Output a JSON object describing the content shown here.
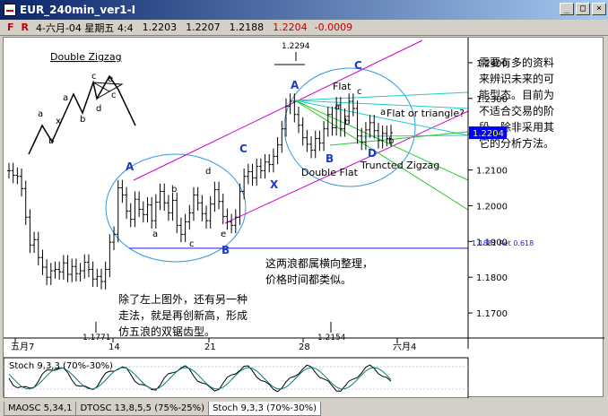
{
  "window": {
    "title": "EUR_240min_ver1-I",
    "min": "_",
    "max": "□",
    "close": "×"
  },
  "info": {
    "flag_f": "F",
    "flag_r": "R",
    "date": "4-六月-04 星期五 4:4",
    "open": "1.2203",
    "high": "1.2207",
    "low": "1.2188",
    "close": "1.2204",
    "change": "-0.0009"
  },
  "tabs": [
    "MAOSC 5,34,1",
    "DTOSC 13,8,5,5 (75%-25%)",
    "Stoch 9,3,3 (70%-30%)"
  ],
  "colors": {
    "bars": "#000000",
    "channel": "#cc00cc",
    "ellipse": "#3399dd",
    "fan_cyan": "#22cccc",
    "fan_green": "#22cc22",
    "hline": "#2222cc",
    "wave_label": "#1a3cc8",
    "last_price_bg": "#0000ff"
  },
  "chart_data": {
    "type": "line",
    "ylim": [
      1.163,
      1.247
    ],
    "y_ticks": [
      "1.2400",
      "1.2300",
      "1.2200",
      "1.2100",
      "1.2000",
      "1.1900",
      "1.1800",
      "1.1700"
    ],
    "x_ticks": [
      "五月7",
      "14",
      "21",
      "28",
      "六月4"
    ],
    "last_price": "1.2204",
    "support_line": {
      "value": 1.1881,
      "label": "1.1881 Ret 0.618"
    },
    "extremes": [
      {
        "label": "1.2294",
        "value": 1.2294
      },
      {
        "label": "1.1771",
        "value": 1.1771
      },
      {
        "label": "1.2154",
        "value": 1.2154
      }
    ],
    "series": [
      {
        "values": [
          1.2098,
          1.2085,
          1.2082,
          1.2048,
          1.1968,
          1.189,
          1.1905,
          1.1855,
          1.1828,
          1.18,
          1.1818,
          1.1822,
          1.1815,
          1.184,
          1.1808,
          1.183,
          1.181,
          1.1818,
          1.1842,
          1.1822,
          1.1795,
          1.1802,
          1.1788,
          1.1822,
          1.1898,
          1.192,
          1.205,
          1.203,
          1.1985,
          1.1962,
          1.2018,
          1.199,
          1.1975,
          1.2002,
          1.1958,
          1.201,
          1.204,
          1.2008,
          1.198,
          1.2015,
          1.1945,
          1.192,
          1.1955,
          1.198,
          1.203,
          1.2008,
          1.1978,
          1.1958,
          1.2005,
          1.2045,
          1.2012,
          1.197,
          1.1955,
          1.1945,
          1.1968,
          1.204,
          1.2082,
          1.2095,
          1.2078,
          1.211,
          1.2098,
          1.2122,
          1.2115,
          1.2138,
          1.217,
          1.2215,
          1.2278,
          1.2292,
          1.2255,
          1.2225,
          1.219,
          1.2172,
          1.2155,
          1.2188,
          1.2175,
          1.2215,
          1.2255,
          1.2218,
          1.2282,
          1.2215,
          1.225,
          1.2292,
          1.2272,
          1.2195,
          1.2178,
          1.2212,
          1.2232,
          1.221,
          1.2182,
          1.2202,
          1.2188,
          1.2204
        ]
      }
    ]
  },
  "annotations": {
    "double_zigzag": "Double Zigzag",
    "mini_labels": [
      "a",
      "b",
      "x",
      "a",
      "b",
      "c",
      "d",
      "e",
      "c"
    ],
    "wave_A1": "A",
    "wave_B1": "B",
    "wave_C": "C",
    "wave_X": "X",
    "wave_A2": "A",
    "wave_B2": "B",
    "wave_C2": "C",
    "wave_D": "D",
    "small_a1": "a",
    "small_b1": "b",
    "small_c1": "c",
    "small_d1": "d",
    "small_e1": "e",
    "small_a2": "a",
    "small_b2": "b",
    "small_c2": "c",
    "small_a3": "a",
    "small_b3": "b",
    "flat": "Flat",
    "flat_or_triangle": "Flat or triangle?",
    "double_flat": "Double Flat",
    "truncted_zigzag": "Truncted Zigzag",
    "note_right": [
      "需要有多的资料",
      "来辨识未来的可",
      "能型态。目前为",
      "不适合交易的阶",
      "段，除非采用其",
      "它的分析方法。"
    ],
    "note_mid": [
      "这两浪都属横向整理，",
      "价格时间都类似。"
    ],
    "note_left": [
      "除了左上图外，还有另一种",
      "走法，就是再创新高，形成",
      "仿五浪的双锯齿型。"
    ]
  },
  "stoch": {
    "label": "Stoch 9,3,3 (70%-30%)"
  }
}
